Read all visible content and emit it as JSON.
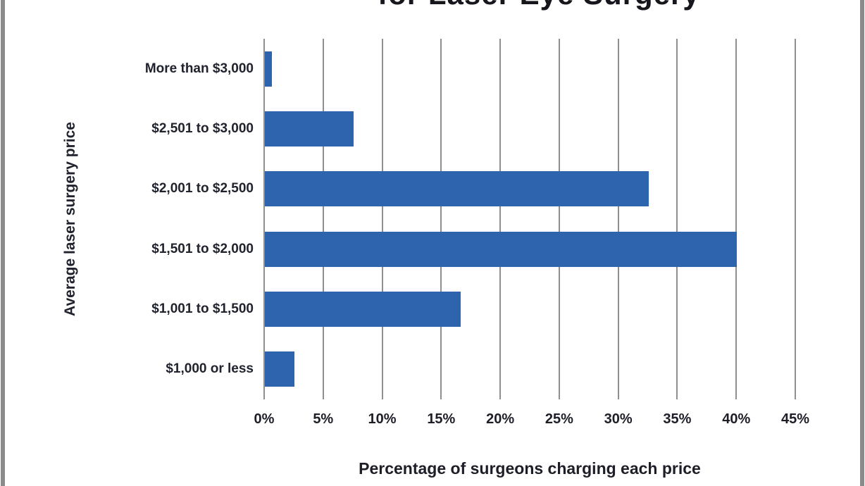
{
  "window": {
    "border_color": "#8b8b8b",
    "background_color": "#ffffff"
  },
  "chart_data": {
    "type": "bar",
    "orientation": "horizontal",
    "title_visible_fragment": "for Laser Eye Surgery",
    "title_note": "title clipped at top edge of screenshot; only bottom of last line visible",
    "categories": [
      "More than $3,000",
      "$2,501 to $3,000",
      "$2,001 to $2,500",
      "$1,501 to $2,000",
      "$1,001 to $1,500",
      "$1,000 or less"
    ],
    "values": [
      0.6,
      7.5,
      32.5,
      40,
      16.6,
      2.5
    ],
    "xlabel": "Percentage of surgeons charging each price",
    "ylabel": "Average laser surgery price",
    "x_ticks": [
      "0%",
      "5%",
      "10%",
      "15%",
      "20%",
      "25%",
      "30%",
      "35%",
      "40%",
      "45%"
    ],
    "x_tick_values": [
      0,
      5,
      10,
      15,
      20,
      25,
      30,
      35,
      40,
      45
    ],
    "xlim": [
      0,
      45
    ],
    "grid": true,
    "legend": false,
    "bar_color": "#2e64ad",
    "gridline_color": "#8f8f8f",
    "text_color": "#20222e"
  }
}
